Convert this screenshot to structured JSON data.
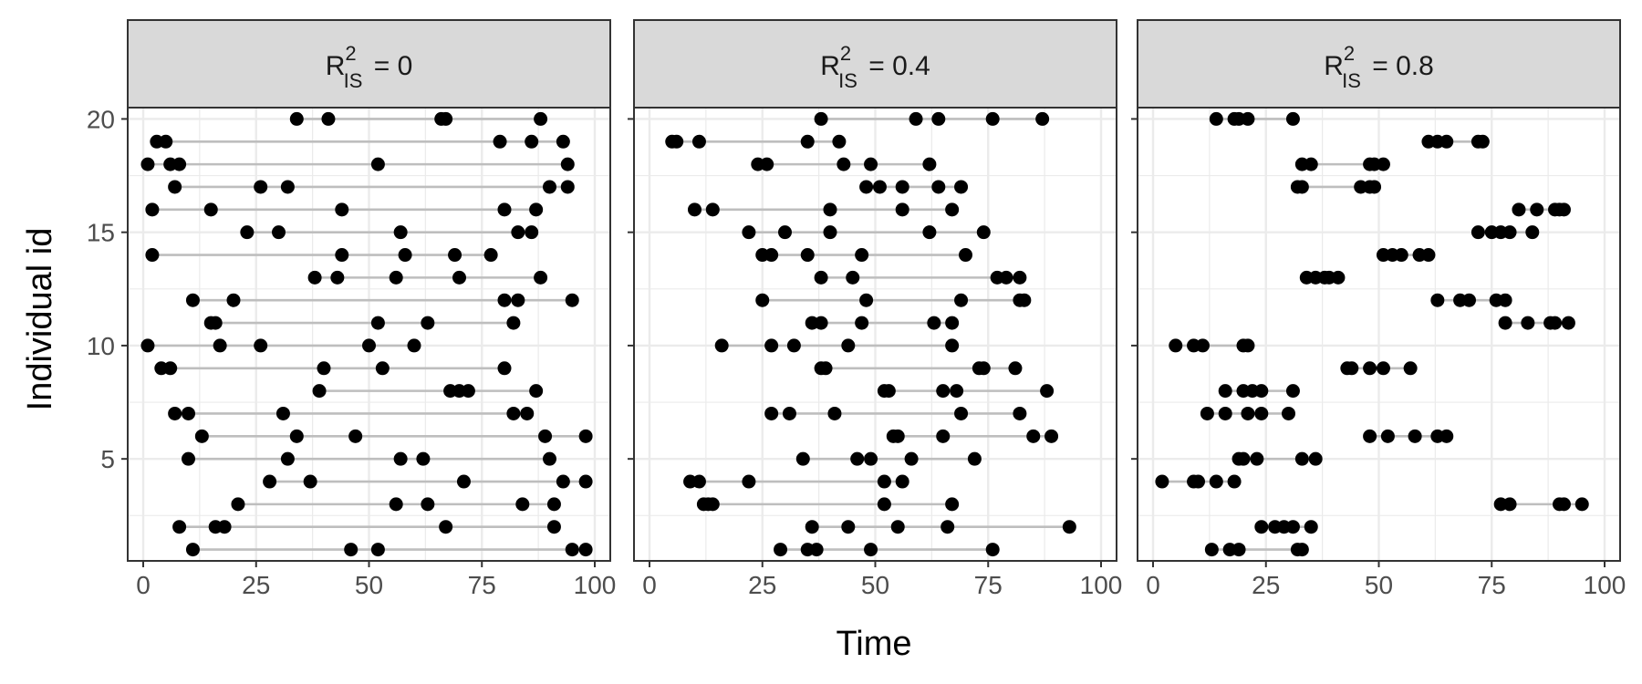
{
  "chart_data": {
    "type": "scatter",
    "xlabel": "Time",
    "ylabel": "Individual id",
    "xlim": [
      0,
      100
    ],
    "ylim": [
      0.5,
      20.5
    ],
    "xticks": [
      0,
      25,
      50,
      75,
      100
    ],
    "yticks": [
      5,
      10,
      15,
      20
    ],
    "grid": true,
    "legend": "none",
    "colors": {
      "point": "#000000",
      "segment": "#bebebe",
      "strip": "#d9d9d9",
      "border": "#333333",
      "grid": "#ebebeb"
    },
    "panels": [
      {
        "label": {
          "base": "R",
          "sup": "2",
          "sub": "IS",
          "value": "= 0"
        },
        "rows": [
          {
            "id": 20,
            "x": [
              34,
              41,
              66,
              67,
              88
            ]
          },
          {
            "id": 19,
            "x": [
              3,
              5,
              79,
              86,
              93
            ]
          },
          {
            "id": 18,
            "x": [
              1,
              6,
              8,
              52,
              94
            ]
          },
          {
            "id": 17,
            "x": [
              7,
              26,
              32,
              90,
              94
            ]
          },
          {
            "id": 16,
            "x": [
              2,
              15,
              44,
              80,
              87
            ]
          },
          {
            "id": 15,
            "x": [
              23,
              30,
              57,
              83,
              86
            ]
          },
          {
            "id": 14,
            "x": [
              2,
              44,
              58,
              69,
              77
            ]
          },
          {
            "id": 13,
            "x": [
              38,
              43,
              56,
              70,
              88
            ]
          },
          {
            "id": 12,
            "x": [
              11,
              20,
              80,
              83,
              95
            ]
          },
          {
            "id": 11,
            "x": [
              15,
              16,
              52,
              63,
              82
            ]
          },
          {
            "id": 10,
            "x": [
              1,
              17,
              26,
              50,
              60
            ]
          },
          {
            "id": 9,
            "x": [
              4,
              6,
              40,
              53,
              80
            ]
          },
          {
            "id": 8,
            "x": [
              39,
              68,
              70,
              72,
              87
            ]
          },
          {
            "id": 7,
            "x": [
              7,
              10,
              31,
              82,
              85
            ]
          },
          {
            "id": 6,
            "x": [
              13,
              34,
              47,
              89,
              98
            ]
          },
          {
            "id": 5,
            "x": [
              10,
              32,
              57,
              62,
              90
            ]
          },
          {
            "id": 4,
            "x": [
              28,
              37,
              71,
              93,
              98
            ]
          },
          {
            "id": 3,
            "x": [
              21,
              56,
              63,
              84,
              91
            ]
          },
          {
            "id": 2,
            "x": [
              8,
              16,
              18,
              67,
              91
            ]
          },
          {
            "id": 1,
            "x": [
              11,
              46,
              52,
              95,
              98
            ]
          }
        ]
      },
      {
        "label": {
          "base": "R",
          "sup": "2",
          "sub": "IS",
          "value": "= 0.4"
        },
        "rows": [
          {
            "id": 20,
            "x": [
              38,
              59,
              64,
              76,
              87
            ]
          },
          {
            "id": 19,
            "x": [
              5,
              6,
              11,
              35,
              42
            ]
          },
          {
            "id": 18,
            "x": [
              24,
              26,
              43,
              49,
              62
            ]
          },
          {
            "id": 17,
            "x": [
              48,
              51,
              56,
              64,
              69
            ]
          },
          {
            "id": 16,
            "x": [
              10,
              14,
              40,
              56,
              67
            ]
          },
          {
            "id": 15,
            "x": [
              22,
              30,
              40,
              62,
              74
            ]
          },
          {
            "id": 14,
            "x": [
              25,
              27,
              35,
              47,
              70
            ]
          },
          {
            "id": 13,
            "x": [
              38,
              45,
              77,
              79,
              82
            ]
          },
          {
            "id": 12,
            "x": [
              25,
              48,
              69,
              82,
              83
            ]
          },
          {
            "id": 11,
            "x": [
              36,
              38,
              47,
              63,
              67
            ]
          },
          {
            "id": 10,
            "x": [
              16,
              27,
              32,
              44,
              67
            ]
          },
          {
            "id": 9,
            "x": [
              38,
              39,
              73,
              74,
              81
            ]
          },
          {
            "id": 8,
            "x": [
              52,
              53,
              65,
              68,
              88
            ]
          },
          {
            "id": 7,
            "x": [
              27,
              31,
              41,
              69,
              82
            ]
          },
          {
            "id": 6,
            "x": [
              54,
              55,
              65,
              85,
              89
            ]
          },
          {
            "id": 5,
            "x": [
              34,
              46,
              49,
              58,
              72
            ]
          },
          {
            "id": 4,
            "x": [
              9,
              11,
              22,
              52,
              56
            ]
          },
          {
            "id": 3,
            "x": [
              12,
              13,
              14,
              52,
              67
            ]
          },
          {
            "id": 2,
            "x": [
              36,
              44,
              55,
              66,
              93
            ]
          },
          {
            "id": 1,
            "x": [
              29,
              35,
              37,
              49,
              76
            ]
          }
        ]
      },
      {
        "label": {
          "base": "R",
          "sup": "2",
          "sub": "IS",
          "value": "= 0.8"
        },
        "rows": [
          {
            "id": 20,
            "x": [
              14,
              18,
              19,
              21,
              31
            ]
          },
          {
            "id": 19,
            "x": [
              61,
              63,
              65,
              72,
              73
            ]
          },
          {
            "id": 18,
            "x": [
              33,
              35,
              48,
              49,
              51
            ]
          },
          {
            "id": 17,
            "x": [
              32,
              33,
              46,
              48,
              49
            ]
          },
          {
            "id": 16,
            "x": [
              81,
              85,
              89,
              90,
              91
            ]
          },
          {
            "id": 15,
            "x": [
              72,
              75,
              77,
              79,
              84
            ]
          },
          {
            "id": 14,
            "x": [
              51,
              53,
              55,
              59,
              61
            ]
          },
          {
            "id": 13,
            "x": [
              34,
              36,
              38,
              39,
              41
            ]
          },
          {
            "id": 12,
            "x": [
              63,
              68,
              70,
              76,
              78
            ]
          },
          {
            "id": 11,
            "x": [
              78,
              83,
              88,
              89,
              92
            ]
          },
          {
            "id": 10,
            "x": [
              5,
              9,
              11,
              20,
              21
            ]
          },
          {
            "id": 9,
            "x": [
              43,
              44,
              48,
              51,
              57
            ]
          },
          {
            "id": 8,
            "x": [
              16,
              20,
              22,
              24,
              31
            ]
          },
          {
            "id": 7,
            "x": [
              12,
              16,
              21,
              24,
              30
            ]
          },
          {
            "id": 6,
            "x": [
              48,
              52,
              58,
              63,
              65
            ]
          },
          {
            "id": 5,
            "x": [
              19,
              20,
              23,
              33,
              36
            ]
          },
          {
            "id": 4,
            "x": [
              2,
              9,
              10,
              14,
              18
            ]
          },
          {
            "id": 3,
            "x": [
              77,
              79,
              90,
              91,
              95
            ]
          },
          {
            "id": 2,
            "x": [
              24,
              27,
              29,
              31,
              35
            ]
          },
          {
            "id": 1,
            "x": [
              13,
              17,
              19,
              32,
              33
            ]
          }
        ]
      }
    ]
  }
}
